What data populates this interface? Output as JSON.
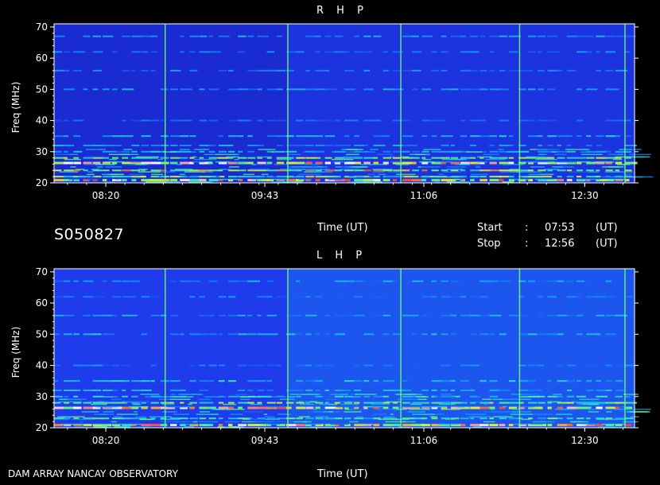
{
  "chart_data": [
    {
      "type": "heatmap",
      "title": "R H P",
      "ylabel": "Freq (MHz)",
      "xlabel": "Time (UT)",
      "y_ticks": [
        "70",
        "60",
        "50",
        "40",
        "30",
        "20"
      ],
      "x_ticks": [
        "08:20",
        "09:43",
        "11:06",
        "12:30"
      ],
      "ylim": [
        20,
        71
      ],
      "xlim": [
        "07:53",
        "12:56"
      ],
      "vertical_lines_time": [
        "08:51",
        "09:55",
        "10:54",
        "11:56",
        "12:51"
      ],
      "bands": [
        {
          "freq": 21,
          "level": 0.95
        },
        {
          "freq": 22,
          "level": 0.8
        },
        {
          "freq": 24,
          "level": 0.85
        },
        {
          "freq": 26.5,
          "level": 1.0
        },
        {
          "freq": 28,
          "level": 0.8
        },
        {
          "freq": 30,
          "level": 0.55
        },
        {
          "freq": 32,
          "level": 0.5
        },
        {
          "freq": 35,
          "level": 0.55
        },
        {
          "freq": 40,
          "level": 0.4
        },
        {
          "freq": 50,
          "level": 0.5
        },
        {
          "freq": 56,
          "level": 0.45
        },
        {
          "freq": 62,
          "level": 0.45
        },
        {
          "freq": 67,
          "level": 0.5
        }
      ],
      "background_level": 0.15
    },
    {
      "type": "heatmap",
      "title": "L H P",
      "ylabel": "Freq (MHz)",
      "xlabel": "Time (UT)",
      "y_ticks": [
        "70",
        "60",
        "50",
        "40",
        "30",
        "20"
      ],
      "x_ticks": [
        "08:20",
        "09:43",
        "11:06",
        "12:30"
      ],
      "ylim": [
        20,
        71
      ],
      "xlim": [
        "07:53",
        "12:56"
      ],
      "vertical_lines_time": [
        "08:51",
        "09:55",
        "10:54",
        "11:56",
        "12:51"
      ],
      "bands": [
        {
          "freq": 21,
          "level": 0.95
        },
        {
          "freq": 23,
          "level": 0.7
        },
        {
          "freq": 26.5,
          "level": 1.0
        },
        {
          "freq": 28,
          "level": 0.8
        },
        {
          "freq": 30,
          "level": 0.6
        },
        {
          "freq": 32,
          "level": 0.55
        },
        {
          "freq": 35,
          "level": 0.6
        },
        {
          "freq": 40,
          "level": 0.45
        },
        {
          "freq": 50,
          "level": 0.55
        },
        {
          "freq": 56,
          "level": 0.5
        },
        {
          "freq": 62,
          "level": 0.45
        },
        {
          "freq": 67,
          "level": 0.5
        }
      ],
      "background_level": 0.25
    }
  ],
  "info": {
    "session_id": "S050827",
    "time_label": "Time (UT)",
    "start_label": "Start",
    "stop_label": "Stop",
    "colon": ":",
    "start_time": "07:53",
    "stop_time": "12:56",
    "unit": "(UT)"
  },
  "footer": {
    "observatory": "DAM ARRAY   NANCAY OBSERVATORY",
    "time_label": "Time (UT)"
  }
}
